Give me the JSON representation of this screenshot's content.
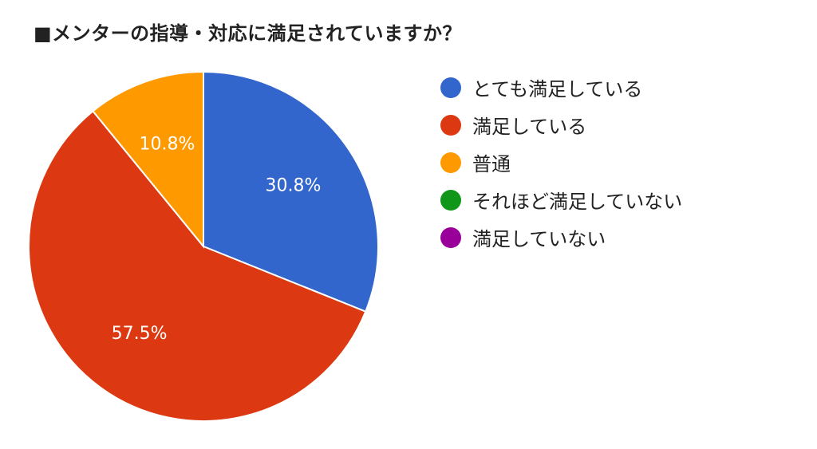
{
  "chart_data": {
    "type": "pie",
    "title": "■メンターの指導・対応に満足されていますか？",
    "categories": [
      "とても満足している",
      "満足している",
      "普通",
      "それほど満足していない",
      "満足していない"
    ],
    "values": [
      30.8,
      57.5,
      10.8,
      0,
      0
    ],
    "labels": [
      "30.8%",
      "57.5%",
      "10.8%",
      "",
      ""
    ],
    "colors": [
      "#3366cc",
      "#dc3912",
      "#ff9900",
      "#109618",
      "#990099"
    ],
    "legend_position": "right"
  }
}
